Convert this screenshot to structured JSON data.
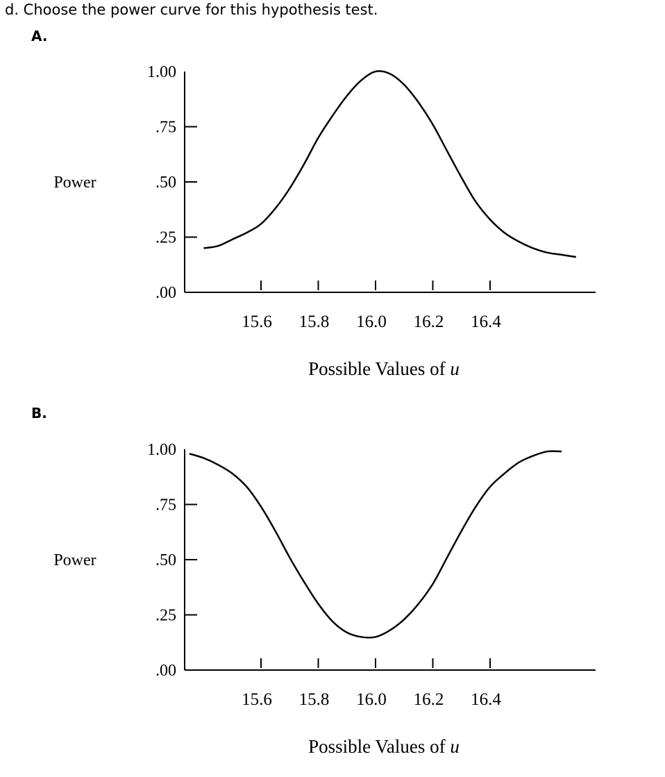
{
  "question": {
    "text": "d. Choose the power curve for this hypothesis test."
  },
  "options": [
    {
      "label": "A."
    },
    {
      "label": "B."
    }
  ],
  "chart_data": [
    {
      "type": "line",
      "title": "",
      "ylabel": "Power",
      "xlabel_text": "Possible Values of ",
      "xlabel_var": "u",
      "xlim": [
        15.35,
        16.95
      ],
      "ylim": [
        0,
        1.0
      ],
      "x_ticks": [
        {
          "value": 15.6,
          "label": "15.6"
        },
        {
          "value": 15.8,
          "label": "15.8"
        },
        {
          "value": 16.0,
          "label": "16.0"
        },
        {
          "value": 16.2,
          "label": "16.2"
        },
        {
          "value": 16.4,
          "label": "16.4"
        }
      ],
      "y_ticks": [
        {
          "value": 1.0,
          "label": "1.00"
        },
        {
          "value": 0.75,
          "label": ".75"
        },
        {
          "value": 0.5,
          "label": ".50"
        },
        {
          "value": 0.25,
          "label": ".25"
        },
        {
          "value": 0.0,
          "label": ".00"
        }
      ],
      "grid": false,
      "series": [
        {
          "x": [
            15.4,
            15.45,
            15.5,
            15.55,
            15.6,
            15.65,
            15.7,
            15.75,
            15.8,
            15.85,
            15.9,
            15.95,
            16.0,
            16.05,
            16.1,
            16.15,
            16.2,
            16.25,
            16.3,
            16.35,
            16.4,
            16.45,
            16.5,
            16.55,
            16.6,
            16.65,
            16.7
          ],
          "values": [
            0.2,
            0.21,
            0.24,
            0.27,
            0.31,
            0.38,
            0.47,
            0.58,
            0.7,
            0.8,
            0.89,
            0.96,
            1.0,
            0.99,
            0.94,
            0.86,
            0.76,
            0.64,
            0.52,
            0.41,
            0.33,
            0.27,
            0.23,
            0.2,
            0.18,
            0.17,
            0.16
          ]
        }
      ]
    },
    {
      "type": "line",
      "title": "",
      "ylabel": "Power",
      "xlabel_text": "Possible Values of ",
      "xlabel_var": "u",
      "xlim": [
        15.35,
        16.95
      ],
      "ylim": [
        0,
        1.0
      ],
      "x_ticks": [
        {
          "value": 15.6,
          "label": "15.6"
        },
        {
          "value": 15.8,
          "label": "15.8"
        },
        {
          "value": 16.0,
          "label": "16.0"
        },
        {
          "value": 16.2,
          "label": "16.2"
        },
        {
          "value": 16.4,
          "label": "16.4"
        }
      ],
      "y_ticks": [
        {
          "value": 1.0,
          "label": "1.00"
        },
        {
          "value": 0.75,
          "label": ".75"
        },
        {
          "value": 0.5,
          "label": ".50"
        },
        {
          "value": 0.25,
          "label": ".25"
        },
        {
          "value": 0.0,
          "label": ".00"
        }
      ],
      "grid": false,
      "series": [
        {
          "x": [
            15.35,
            15.4,
            15.45,
            15.5,
            15.55,
            15.6,
            15.65,
            15.7,
            15.75,
            15.8,
            15.85,
            15.9,
            15.95,
            16.0,
            16.05,
            16.1,
            16.15,
            16.2,
            16.25,
            16.3,
            16.35,
            16.4,
            16.45,
            16.5,
            16.55,
            16.6,
            16.65
          ],
          "values": [
            0.98,
            0.96,
            0.93,
            0.89,
            0.83,
            0.74,
            0.63,
            0.51,
            0.4,
            0.3,
            0.22,
            0.17,
            0.15,
            0.15,
            0.18,
            0.23,
            0.3,
            0.39,
            0.51,
            0.63,
            0.74,
            0.83,
            0.89,
            0.94,
            0.97,
            0.99,
            0.99
          ]
        }
      ]
    }
  ]
}
